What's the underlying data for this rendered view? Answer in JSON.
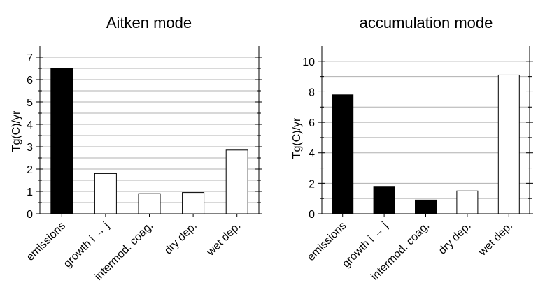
{
  "chart_data": [
    {
      "type": "bar",
      "title": "Aitken mode",
      "ylabel": "Tg(C)/yr",
      "xlabel": "",
      "categories": [
        "emissions",
        "growth i → j",
        "intermod. coag.",
        "dry dep.",
        "wet dep."
      ],
      "values": [
        6.5,
        1.8,
        0.9,
        0.95,
        2.85
      ],
      "bar_fill": [
        "black",
        "white",
        "white",
        "white",
        "white"
      ],
      "ylim": [
        0,
        7.5
      ],
      "yticks": [
        0,
        1,
        2,
        3,
        4,
        5,
        6,
        7
      ],
      "ytick_labels": [
        "0",
        "1",
        "2",
        "3",
        "4",
        "5",
        "6",
        "7"
      ],
      "grid": true
    },
    {
      "type": "bar",
      "title": "accumulation mode",
      "ylabel": "Tg(C)/yr",
      "xlabel": "",
      "categories": [
        "emissions",
        "growth i → j",
        "intermod. coag.",
        "dry dep.",
        "wet dep."
      ],
      "values": [
        7.8,
        1.8,
        0.9,
        1.5,
        9.1
      ],
      "bar_fill": [
        "black",
        "black",
        "black",
        "white",
        "white"
      ],
      "ylim": [
        0,
        11
      ],
      "yticks": [
        0,
        2,
        4,
        6,
        8,
        10
      ],
      "ytick_labels": [
        "0",
        "2",
        "4",
        "6",
        "8",
        "10"
      ],
      "grid": true
    }
  ],
  "colors": {
    "filled_bar": "#000000",
    "open_bar": "#ffffff",
    "grid": "#b0b0b0",
    "axis": "#000000"
  }
}
